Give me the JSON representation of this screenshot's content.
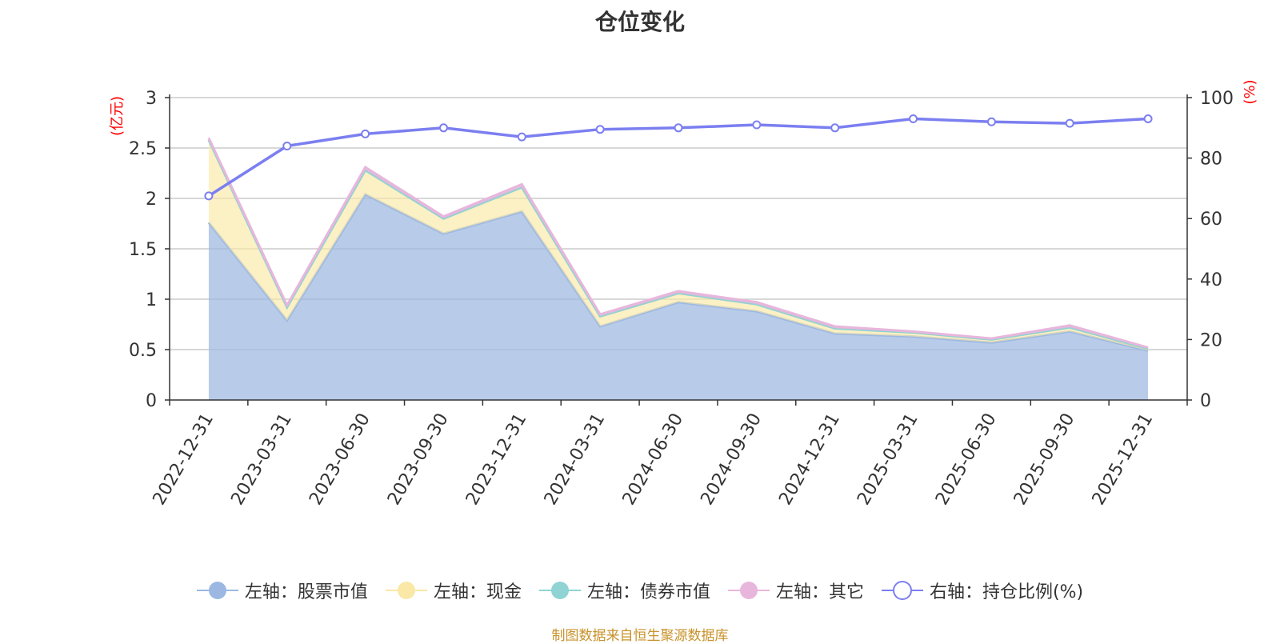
{
  "title": "仓位变化",
  "source": "制图数据来自恒生聚源数据库",
  "chart_data": {
    "type": "area",
    "x": [
      "2022-12-31",
      "2023-03-31",
      "2023-06-30",
      "2023-09-30",
      "2023-12-31",
      "2024-03-31",
      "2024-06-30",
      "2024-09-30",
      "2024-12-31",
      "2025-03-31",
      "2025-06-30",
      "2025-09-30",
      "2025-12-31"
    ],
    "left_axis": {
      "unit": "(亿元)",
      "range": [
        0,
        3
      ],
      "ticks": [
        "0",
        "0.5",
        "1",
        "1.5",
        "2",
        "2.5",
        "3"
      ]
    },
    "right_axis": {
      "unit": "(%)",
      "range": [
        0,
        100
      ],
      "ticks": [
        "0",
        "20",
        "40",
        "60",
        "80",
        "100"
      ]
    },
    "series": [
      {
        "name": "左轴：股票市值",
        "axis": "left",
        "type": "area",
        "color": "#9cb8e2",
        "values": [
          1.76,
          0.79,
          2.04,
          1.65,
          1.87,
          0.73,
          0.97,
          0.88,
          0.66,
          0.63,
          0.57,
          0.68,
          0.49
        ]
      },
      {
        "name": "左轴：现金",
        "axis": "left",
        "type": "area",
        "color": "#fae8a6",
        "values": [
          0.82,
          0.13,
          0.24,
          0.15,
          0.24,
          0.1,
          0.09,
          0.07,
          0.05,
          0.04,
          0.03,
          0.04,
          0.02
        ]
      },
      {
        "name": "左轴：债券市值",
        "axis": "left",
        "type": "area",
        "color": "#8fd3d3",
        "values": [
          0,
          0,
          0,
          0,
          0,
          0,
          0,
          0,
          0,
          0,
          0,
          0,
          0
        ]
      },
      {
        "name": "左轴：其它",
        "axis": "left",
        "type": "area",
        "color": "#e8b6dc",
        "values": [
          0.02,
          0.02,
          0.03,
          0.02,
          0.03,
          0.02,
          0.02,
          0.02,
          0.02,
          0.01,
          0.01,
          0.02,
          0.01
        ]
      },
      {
        "name": "右轴：持仓比例(%)",
        "axis": "right",
        "type": "line",
        "color": "#7b7ff0",
        "values": [
          67.5,
          84,
          88,
          90,
          87,
          89.5,
          90,
          91,
          90,
          93,
          92,
          91.5,
          93
        ]
      }
    ]
  }
}
